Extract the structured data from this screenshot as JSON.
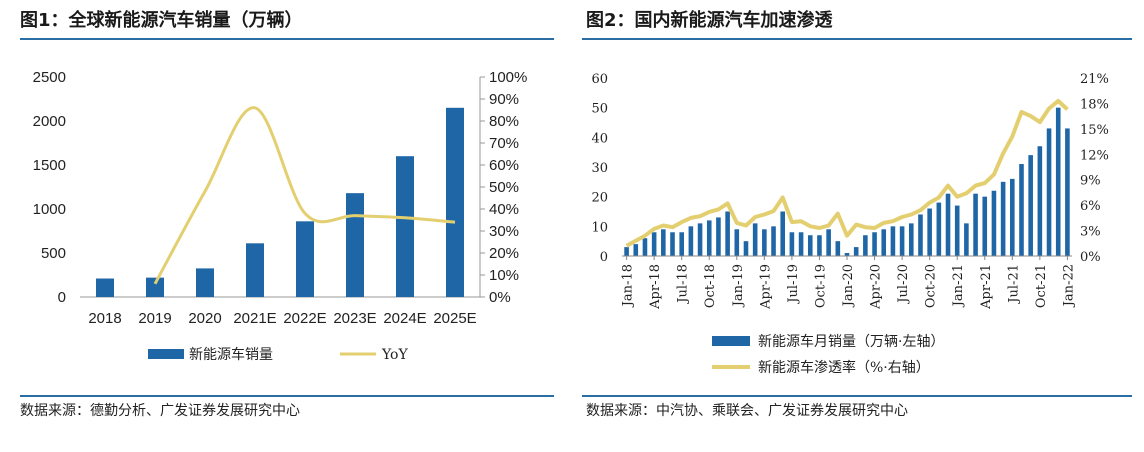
{
  "figure1": {
    "title": "图1：全球新能源汽车销量（万辆）",
    "source": "数据来源：德勤分析、广发证券发展研究中心",
    "legend": {
      "bar": "新能源车销量",
      "line": "YoY"
    }
  },
  "figure2": {
    "title": "图2：国内新能源汽车加速渗透",
    "source": "数据来源：中汽协、乘联会、广发证券发展研究中心",
    "legend": {
      "bar": "新能源车月销量（万辆·左轴）",
      "line": "新能源车渗透率（%·右轴）"
    }
  },
  "chart_data": [
    {
      "type": "bar",
      "title": "全球新能源汽车销量（万辆）",
      "categories": [
        "2018",
        "2019",
        "2020",
        "2021E",
        "2022E",
        "2023E",
        "2024E",
        "2025E"
      ],
      "series": [
        {
          "name": "新能源车销量",
          "type": "bar",
          "axis": "left",
          "color": "#1f66a6",
          "values": [
            210,
            220,
            325,
            610,
            860,
            1180,
            1600,
            2150
          ]
        },
        {
          "name": "YoY",
          "type": "line",
          "axis": "right",
          "color": "#e4cf70",
          "values": [
            null,
            6,
            48,
            86,
            38,
            37,
            36,
            34
          ]
        }
      ],
      "y_left": {
        "min": 0,
        "max": 2500,
        "ticks": [
          0,
          500,
          1000,
          1500,
          2000,
          2500
        ]
      },
      "y_right": {
        "min": 0,
        "max": 100,
        "unit": "%",
        "ticks": [
          0,
          10,
          20,
          30,
          40,
          50,
          60,
          70,
          80,
          90,
          100
        ]
      },
      "grid": false,
      "legend_position": "bottom"
    },
    {
      "type": "bar",
      "title": "国内新能源汽车加速渗透",
      "x_tick_labels": [
        "Jan-18",
        "Apr-18",
        "Jul-18",
        "Oct-18",
        "Jan-19",
        "Apr-19",
        "Jul-19",
        "Oct-19",
        "Jan-20",
        "Apr-20",
        "Jul-20",
        "Oct-20",
        "Jan-21",
        "Apr-21",
        "Jul-21",
        "Oct-21",
        "Jan-22"
      ],
      "series": [
        {
          "name": "新能源车月销量（万辆·左轴）",
          "type": "bar",
          "axis": "left",
          "color": "#1f66a6",
          "values": [
            3,
            4,
            6,
            8,
            9,
            8,
            8,
            10,
            11,
            12,
            13,
            15,
            9,
            5,
            11,
            9,
            10,
            15,
            8,
            8,
            7,
            7,
            9,
            5,
            1,
            3,
            7,
            8,
            9,
            10,
            10,
            11,
            14,
            16,
            18,
            21,
            17,
            11,
            21,
            20,
            22,
            25,
            26,
            31,
            34,
            37,
            43,
            50,
            43
          ]
        },
        {
          "name": "新能源车渗透率（%·右轴）",
          "type": "line",
          "axis": "right",
          "color": "#e4cf70",
          "values": [
            1.2,
            1.8,
            2.4,
            3.2,
            3.6,
            3.4,
            4.0,
            4.5,
            4.7,
            5.2,
            5.5,
            6.2,
            3.9,
            3.6,
            4.6,
            4.9,
            5.3,
            6.9,
            4.0,
            4.1,
            3.5,
            3.3,
            3.6,
            5.0,
            2.4,
            3.7,
            3.4,
            3.3,
            3.9,
            4.1,
            4.6,
            4.9,
            5.4,
            6.3,
            6.9,
            8.3,
            7.0,
            7.4,
            8.3,
            8.6,
            9.6,
            12.1,
            14.1,
            17.0,
            16.5,
            15.8,
            17.4,
            18.3,
            17.3
          ]
        }
      ],
      "y_left": {
        "min": 0,
        "max": 60,
        "ticks": [
          0,
          10,
          20,
          30,
          40,
          50,
          60
        ]
      },
      "y_right": {
        "min": 0,
        "max": 21,
        "unit": "%",
        "ticks": [
          0,
          3,
          6,
          9,
          12,
          15,
          18,
          21
        ]
      },
      "grid": false,
      "legend_position": "bottom"
    }
  ]
}
